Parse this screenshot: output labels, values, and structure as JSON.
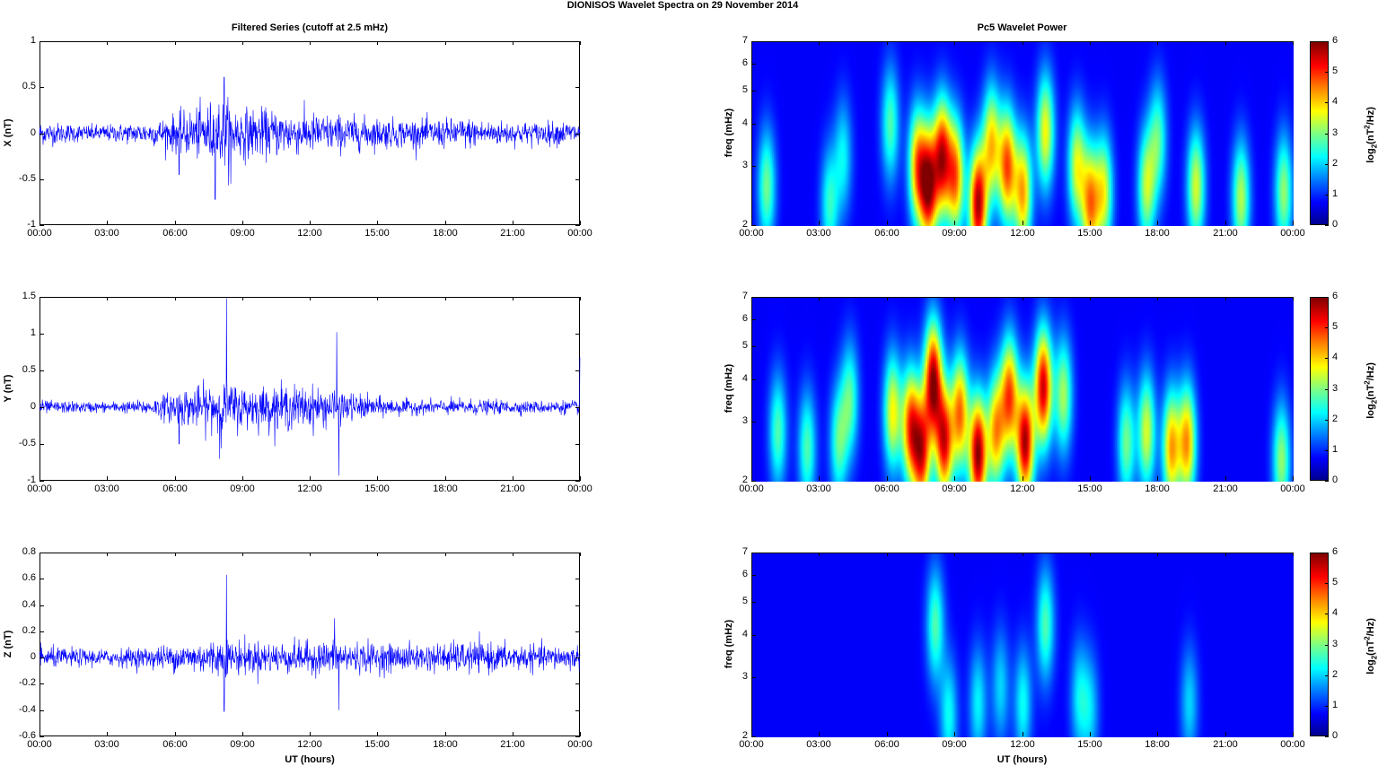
{
  "title": "DIONISOS Wavelet Spectra on 29 November  2014",
  "left_title": "Filtered Series (cutoff at 2.5 mHz)",
  "right_title": "Pc5 Wavelet Power",
  "xlabel": "UT (hours)",
  "colors": {
    "trace": "#0000ff"
  },
  "chart_data": [
    {
      "type": "line",
      "title": "Filtered Series (cutoff at 2.5 mHz)",
      "ylabel": "X (nT)",
      "xlabel": "",
      "x_ticks": [
        "00:00",
        "03:00",
        "06:00",
        "09:00",
        "12:00",
        "15:00",
        "18:00",
        "21:00",
        "00:00"
      ],
      "xlim_hours": [
        0,
        24
      ],
      "ylim": [
        -1,
        1
      ],
      "y_ticks": [
        "1",
        "0.5",
        "0",
        "-0.5",
        "-1"
      ],
      "y_tick_values": [
        1,
        0.5,
        0,
        -0.5,
        -1
      ],
      "envelope_hours": [
        0,
        1,
        2,
        3,
        4,
        5,
        6,
        7,
        8,
        9,
        10,
        11,
        12,
        13,
        14,
        15,
        16,
        17,
        18,
        19,
        20,
        21,
        22,
        23,
        24
      ],
      "envelope_amplitude": [
        0.14,
        0.12,
        0.1,
        0.1,
        0.12,
        0.14,
        0.22,
        0.3,
        0.42,
        0.3,
        0.28,
        0.26,
        0.24,
        0.22,
        0.2,
        0.18,
        0.17,
        0.16,
        0.17,
        0.18,
        0.15,
        0.14,
        0.13,
        0.14,
        0.14
      ],
      "spikes": [
        [
          8.2,
          0.61
        ],
        [
          7.8,
          -0.72
        ],
        [
          8.5,
          -0.55
        ],
        [
          6.2,
          -0.45
        ]
      ]
    },
    {
      "type": "line",
      "title": "",
      "ylabel": "Y (nT)",
      "xlabel": "",
      "x_ticks": [
        "00:00",
        "03:00",
        "06:00",
        "09:00",
        "12:00",
        "15:00",
        "18:00",
        "21:00",
        "00:00"
      ],
      "xlim_hours": [
        0,
        24
      ],
      "ylim": [
        -1,
        1.5
      ],
      "y_ticks": [
        "1.5",
        "1",
        "0.5",
        "0",
        "-0.5",
        "-1"
      ],
      "y_tick_values": [
        1.5,
        1,
        0.5,
        0,
        -0.5,
        -1
      ],
      "envelope_hours": [
        0,
        1,
        2,
        3,
        4,
        5,
        6,
        7,
        8,
        9,
        10,
        11,
        12,
        13,
        14,
        15,
        16,
        17,
        18,
        19,
        20,
        21,
        22,
        23,
        24
      ],
      "envelope_amplitude": [
        0.1,
        0.09,
        0.08,
        0.08,
        0.09,
        0.12,
        0.25,
        0.3,
        0.4,
        0.32,
        0.3,
        0.33,
        0.3,
        0.28,
        0.2,
        0.15,
        0.12,
        0.1,
        0.11,
        0.12,
        0.1,
        0.1,
        0.09,
        0.1,
        0.1
      ],
      "spikes": [
        [
          8.3,
          1.48
        ],
        [
          13.2,
          1.02
        ],
        [
          13.3,
          -0.93
        ],
        [
          8.0,
          -0.7
        ],
        [
          6.2,
          -0.5
        ],
        [
          24,
          0.68
        ]
      ]
    },
    {
      "type": "line",
      "title": "",
      "ylabel": "Z (nT)",
      "xlabel": "UT (hours)",
      "x_ticks": [
        "00:00",
        "03:00",
        "06:00",
        "09:00",
        "12:00",
        "15:00",
        "18:00",
        "21:00",
        "00:00"
      ],
      "xlim_hours": [
        0,
        24
      ],
      "ylim": [
        -0.6,
        0.8
      ],
      "y_ticks": [
        "0.8",
        "0.6",
        "0.4",
        "0.2",
        "0",
        "-0.2",
        "-0.4",
        "-0.6"
      ],
      "y_tick_values": [
        0.8,
        0.6,
        0.4,
        0.2,
        0,
        -0.2,
        -0.4,
        -0.6
      ],
      "envelope_hours": [
        0,
        1,
        2,
        3,
        4,
        5,
        6,
        7,
        8,
        9,
        10,
        11,
        12,
        13,
        14,
        15,
        16,
        17,
        18,
        19,
        20,
        21,
        22,
        23,
        24
      ],
      "envelope_amplitude": [
        0.09,
        0.08,
        0.07,
        0.07,
        0.08,
        0.09,
        0.11,
        0.13,
        0.16,
        0.14,
        0.13,
        0.13,
        0.13,
        0.14,
        0.13,
        0.12,
        0.11,
        0.11,
        0.12,
        0.13,
        0.12,
        0.11,
        0.1,
        0.1,
        0.1
      ],
      "spikes": [
        [
          8.3,
          0.63
        ],
        [
          8.2,
          -0.41
        ],
        [
          13.1,
          0.3
        ],
        [
          13.3,
          -0.4
        ]
      ]
    },
    {
      "type": "heatmap",
      "title": "Pc5 Wavelet Power",
      "ylabel": "freq (mHz)",
      "colorbar_label": "log2(nT2/Hz)",
      "x_ticks": [
        "00:00",
        "03:00",
        "06:00",
        "09:00",
        "12:00",
        "15:00",
        "18:00",
        "21:00",
        "00:00"
      ],
      "y_ticks": [
        "7",
        "6",
        "5",
        "4",
        "3",
        "2"
      ],
      "freq_range_mhz": [
        2,
        7
      ],
      "log_frequency_axis": true,
      "colorbar_ticks": [
        "6",
        "5",
        "4",
        "3",
        "2",
        "1",
        "0"
      ],
      "clim": [
        0,
        6
      ],
      "blobs": [
        {
          "t": 0.6,
          "f": 2.6,
          "p": 2.2
        },
        {
          "t": 3.4,
          "f": 2.3,
          "p": 1.8
        },
        {
          "t": 4.0,
          "f": 3.2,
          "p": 1.5
        },
        {
          "t": 6.1,
          "f": 4.0,
          "p": 2.0
        },
        {
          "t": 7.3,
          "f": 3.0,
          "p": 3.5
        },
        {
          "t": 7.8,
          "f": 2.6,
          "p": 4.8
        },
        {
          "t": 8.4,
          "f": 3.2,
          "p": 4.5
        },
        {
          "t": 9.0,
          "f": 2.8,
          "p": 3.8
        },
        {
          "t": 10.0,
          "f": 2.3,
          "p": 5.0
        },
        {
          "t": 10.6,
          "f": 3.5,
          "p": 3.2
        },
        {
          "t": 11.3,
          "f": 3.0,
          "p": 4.0
        },
        {
          "t": 12.0,
          "f": 2.5,
          "p": 3.5
        },
        {
          "t": 13.0,
          "f": 3.8,
          "p": 3.0
        },
        {
          "t": 14.4,
          "f": 3.0,
          "p": 2.8
        },
        {
          "t": 15.0,
          "f": 2.3,
          "p": 3.6
        },
        {
          "t": 15.6,
          "f": 2.5,
          "p": 2.8
        },
        {
          "t": 17.5,
          "f": 2.6,
          "p": 2.6
        },
        {
          "t": 18.0,
          "f": 3.6,
          "p": 2.0
        },
        {
          "t": 19.7,
          "f": 2.6,
          "p": 2.8
        },
        {
          "t": 21.7,
          "f": 2.4,
          "p": 2.6
        },
        {
          "t": 23.6,
          "f": 2.5,
          "p": 2.4
        }
      ]
    },
    {
      "type": "heatmap",
      "title": "",
      "ylabel": "freq (mHz)",
      "colorbar_label": "log2(nT2/Hz)",
      "x_ticks": [
        "00:00",
        "03:00",
        "06:00",
        "09:00",
        "12:00",
        "15:00",
        "18:00",
        "21:00",
        "00:00"
      ],
      "y_ticks": [
        "7",
        "6",
        "5",
        "4",
        "3",
        "2"
      ],
      "freq_range_mhz": [
        2,
        7
      ],
      "log_frequency_axis": true,
      "colorbar_ticks": [
        "6",
        "5",
        "4",
        "3",
        "2",
        "1",
        "0"
      ],
      "clim": [
        0,
        6
      ],
      "blobs": [
        {
          "t": 1.1,
          "f": 2.8,
          "p": 2.0
        },
        {
          "t": 2.4,
          "f": 2.5,
          "p": 2.0
        },
        {
          "t": 3.8,
          "f": 2.6,
          "p": 2.0
        },
        {
          "t": 4.3,
          "f": 3.5,
          "p": 2.0
        },
        {
          "t": 6.2,
          "f": 3.2,
          "p": 3.0
        },
        {
          "t": 7.0,
          "f": 2.9,
          "p": 4.0
        },
        {
          "t": 7.5,
          "f": 2.4,
          "p": 4.2
        },
        {
          "t": 8.0,
          "f": 4.0,
          "p": 5.0
        },
        {
          "t": 8.5,
          "f": 2.6,
          "p": 4.5
        },
        {
          "t": 9.2,
          "f": 3.2,
          "p": 3.8
        },
        {
          "t": 10.0,
          "f": 2.4,
          "p": 5.2
        },
        {
          "t": 10.8,
          "f": 2.8,
          "p": 3.5
        },
        {
          "t": 11.4,
          "f": 3.6,
          "p": 4.0
        },
        {
          "t": 12.1,
          "f": 2.6,
          "p": 5.0
        },
        {
          "t": 12.9,
          "f": 3.8,
          "p": 4.8
        },
        {
          "t": 13.8,
          "f": 3.6,
          "p": 2.5
        },
        {
          "t": 16.6,
          "f": 2.6,
          "p": 2.2
        },
        {
          "t": 17.5,
          "f": 2.8,
          "p": 2.8
        },
        {
          "t": 18.6,
          "f": 2.5,
          "p": 3.5
        },
        {
          "t": 19.3,
          "f": 2.6,
          "p": 3.6
        },
        {
          "t": 23.5,
          "f": 2.3,
          "p": 2.4
        }
      ]
    },
    {
      "type": "heatmap",
      "title": "",
      "ylabel": "freq (mHz)",
      "colorbar_label": "log2(nT2/Hz)",
      "x_ticks": [
        "00:00",
        "03:00",
        "06:00",
        "09:00",
        "12:00",
        "15:00",
        "18:00",
        "21:00",
        "00:00"
      ],
      "xlabel": "UT (hours)",
      "y_ticks": [
        "7",
        "6",
        "5",
        "4",
        "3",
        "2"
      ],
      "freq_range_mhz": [
        2,
        7
      ],
      "log_frequency_axis": true,
      "colorbar_ticks": [
        "6",
        "5",
        "4",
        "3",
        "2",
        "1",
        "0"
      ],
      "clim": [
        0,
        6
      ],
      "blobs": [
        {
          "t": 8.1,
          "f": 4.3,
          "p": 2.0
        },
        {
          "t": 8.7,
          "f": 2.3,
          "p": 1.6
        },
        {
          "t": 10.0,
          "f": 2.5,
          "p": 1.5
        },
        {
          "t": 11.0,
          "f": 2.8,
          "p": 1.3
        },
        {
          "t": 12.0,
          "f": 2.5,
          "p": 1.6
        },
        {
          "t": 13.0,
          "f": 4.3,
          "p": 2.0
        },
        {
          "t": 14.5,
          "f": 2.6,
          "p": 1.4
        },
        {
          "t": 15.0,
          "f": 2.4,
          "p": 1.2
        },
        {
          "t": 19.4,
          "f": 2.5,
          "p": 1.3
        }
      ]
    }
  ]
}
